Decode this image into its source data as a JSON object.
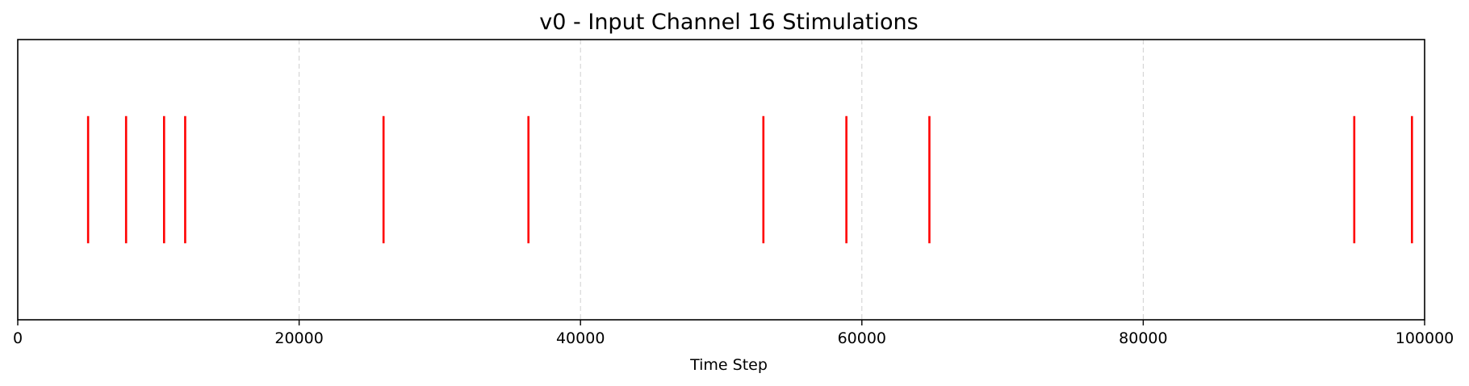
{
  "chart_data": {
    "type": "event-plot",
    "title": "v0 - Input Channel 16 Stimulations",
    "xlabel": "Time Step",
    "ylabel": "",
    "xlim": [
      0,
      100000
    ],
    "xticks": [
      0,
      20000,
      40000,
      60000,
      80000,
      100000
    ],
    "xtick_labels": [
      "0",
      "20000",
      "40000",
      "60000",
      "80000",
      "100000"
    ],
    "grid": "x-axis dashed vertical lines",
    "color": "#ff0000",
    "events": [
      5000,
      7700,
      10400,
      11900,
      26000,
      36300,
      53000,
      58900,
      64800,
      95000,
      99100
    ]
  }
}
